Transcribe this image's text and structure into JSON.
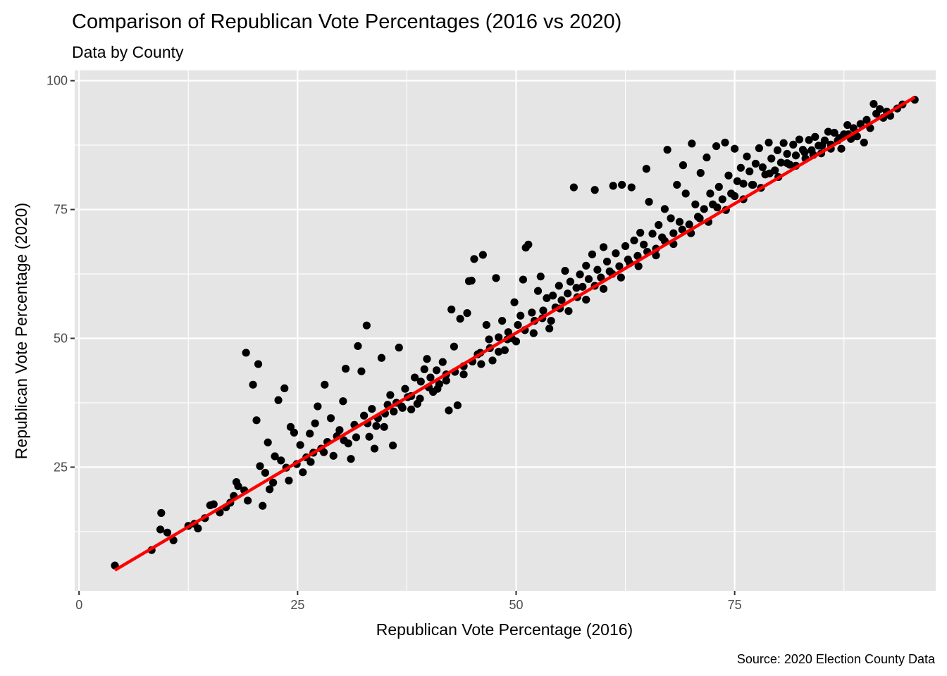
{
  "chart_data": {
    "type": "scatter",
    "title": "Comparison of Republican Vote Percentages (2016 vs 2020)",
    "subtitle": "Data by County",
    "xlabel": "Republican Vote Percentage (2016)",
    "ylabel": "Republican Vote Percentage (2020)",
    "caption": "Source: 2020 Election County Data",
    "xlim": [
      -0.5,
      98
    ],
    "ylim": [
      1,
      102
    ],
    "x_ticks": [
      0,
      25,
      50,
      75
    ],
    "y_ticks": [
      25,
      50,
      75,
      100
    ],
    "x_tick_labels": [
      "0",
      "25",
      "50",
      "75"
    ],
    "y_tick_labels": [
      "25",
      "50",
      "75",
      "100"
    ],
    "grid": true,
    "point_color": "#000000",
    "panel_background": "#e5e5e5",
    "grid_color": "#ffffff",
    "fit_line": {
      "color": "#ff0000",
      "x": [
        4.1,
        95.6
      ],
      "y": [
        5.0,
        96.8
      ]
    },
    "series": [
      {
        "points": [
          [
            4.1,
            5.9
          ],
          [
            8.3,
            8.9
          ],
          [
            9.4,
            16.1
          ],
          [
            9.3,
            12.9
          ],
          [
            10.1,
            12.3
          ],
          [
            10.8,
            10.8
          ],
          [
            12.5,
            13.6
          ],
          [
            13.2,
            14.0
          ],
          [
            13.6,
            13.1
          ],
          [
            14.4,
            15.1
          ],
          [
            15.0,
            17.6
          ],
          [
            15.4,
            17.8
          ],
          [
            16.1,
            16.2
          ],
          [
            16.8,
            17.2
          ],
          [
            17.3,
            18.1
          ],
          [
            17.7,
            19.4
          ],
          [
            18.0,
            22.1
          ],
          [
            18.2,
            21.3
          ],
          [
            18.9,
            20.5
          ],
          [
            19.3,
            18.5
          ],
          [
            19.1,
            47.2
          ],
          [
            19.9,
            41.0
          ],
          [
            20.3,
            34.1
          ],
          [
            20.5,
            45.0
          ],
          [
            20.7,
            25.2
          ],
          [
            21.0,
            17.5
          ],
          [
            21.3,
            23.9
          ],
          [
            21.6,
            29.8
          ],
          [
            21.8,
            20.7
          ],
          [
            22.2,
            22.0
          ],
          [
            22.4,
            27.1
          ],
          [
            22.8,
            38.0
          ],
          [
            23.1,
            26.3
          ],
          [
            23.5,
            40.3
          ],
          [
            23.7,
            24.9
          ],
          [
            24.0,
            22.4
          ],
          [
            24.2,
            32.8
          ],
          [
            24.6,
            31.7
          ],
          [
            24.9,
            25.6
          ],
          [
            25.3,
            29.3
          ],
          [
            25.6,
            24.0
          ],
          [
            26.0,
            26.9
          ],
          [
            26.4,
            31.5
          ],
          [
            26.8,
            27.8
          ],
          [
            27.0,
            33.5
          ],
          [
            27.3,
            36.8
          ],
          [
            27.7,
            28.6
          ],
          [
            28.1,
            41.0
          ],
          [
            28.4,
            29.9
          ],
          [
            28.8,
            34.5
          ],
          [
            29.1,
            27.2
          ],
          [
            29.5,
            31.0
          ],
          [
            29.8,
            32.2
          ],
          [
            30.2,
            37.8
          ],
          [
            30.5,
            44.1
          ],
          [
            30.8,
            29.6
          ],
          [
            31.1,
            26.6
          ],
          [
            31.5,
            33.2
          ],
          [
            31.9,
            48.5
          ],
          [
            32.3,
            43.6
          ],
          [
            32.6,
            35.0
          ],
          [
            32.9,
            52.5
          ],
          [
            33.2,
            30.9
          ],
          [
            33.5,
            36.3
          ],
          [
            33.8,
            28.6
          ],
          [
            34.2,
            34.5
          ],
          [
            34.6,
            46.2
          ],
          [
            34.9,
            32.8
          ],
          [
            35.3,
            37.1
          ],
          [
            35.6,
            39.0
          ],
          [
            35.9,
            29.2
          ],
          [
            36.3,
            37.5
          ],
          [
            36.6,
            48.2
          ],
          [
            36.9,
            36.8
          ],
          [
            37.3,
            40.2
          ],
          [
            37.6,
            38.6
          ],
          [
            38.0,
            36.2
          ],
          [
            38.4,
            42.4
          ],
          [
            38.7,
            37.3
          ],
          [
            39.1,
            41.6
          ],
          [
            39.5,
            44.0
          ],
          [
            39.8,
            46.0
          ],
          [
            40.2,
            42.4
          ],
          [
            40.5,
            39.6
          ],
          [
            40.9,
            43.8
          ],
          [
            41.2,
            41.1
          ],
          [
            41.6,
            45.4
          ],
          [
            42.0,
            43.0
          ],
          [
            42.3,
            36.0
          ],
          [
            42.6,
            55.6
          ],
          [
            42.9,
            48.4
          ],
          [
            43.3,
            37.0
          ],
          [
            43.6,
            53.8
          ],
          [
            44.0,
            44.6
          ],
          [
            44.4,
            54.9
          ],
          [
            44.6,
            61.1
          ],
          [
            44.9,
            61.2
          ],
          [
            45.2,
            65.4
          ],
          [
            45.6,
            46.9
          ],
          [
            45.9,
            47.2
          ],
          [
            46.2,
            66.2
          ],
          [
            46.6,
            52.6
          ],
          [
            46.9,
            49.8
          ],
          [
            47.3,
            45.7
          ],
          [
            47.7,
            61.7
          ],
          [
            48.0,
            50.2
          ],
          [
            48.4,
            53.4
          ],
          [
            48.7,
            47.7
          ],
          [
            49.1,
            51.2
          ],
          [
            49.5,
            50.0
          ],
          [
            49.8,
            57.0
          ],
          [
            50.2,
            52.6
          ],
          [
            50.5,
            54.4
          ],
          [
            50.8,
            61.4
          ],
          [
            51.1,
            67.6
          ],
          [
            51.4,
            68.2
          ],
          [
            51.8,
            55.0
          ],
          [
            52.1,
            53.4
          ],
          [
            52.5,
            59.2
          ],
          [
            52.8,
            62.0
          ],
          [
            53.1,
            55.4
          ],
          [
            53.5,
            57.8
          ],
          [
            53.8,
            51.9
          ],
          [
            54.2,
            58.3
          ],
          [
            54.5,
            56.0
          ],
          [
            54.9,
            60.2
          ],
          [
            55.2,
            57.4
          ],
          [
            55.6,
            63.1
          ],
          [
            55.9,
            58.7
          ],
          [
            56.2,
            61.0
          ],
          [
            56.6,
            79.3
          ],
          [
            56.9,
            59.8
          ],
          [
            57.3,
            62.4
          ],
          [
            57.6,
            60.0
          ],
          [
            58.0,
            64.1
          ],
          [
            58.3,
            61.5
          ],
          [
            58.7,
            66.3
          ],
          [
            59.0,
            78.8
          ],
          [
            59.3,
            63.3
          ],
          [
            59.7,
            61.8
          ],
          [
            60.0,
            67.7
          ],
          [
            60.4,
            64.9
          ],
          [
            60.7,
            63.0
          ],
          [
            61.1,
            79.6
          ],
          [
            61.4,
            66.5
          ],
          [
            61.8,
            64.0
          ],
          [
            62.1,
            79.8
          ],
          [
            62.5,
            67.9
          ],
          [
            62.8,
            65.3
          ],
          [
            63.2,
            79.3
          ],
          [
            63.5,
            69.0
          ],
          [
            63.9,
            66.0
          ],
          [
            64.2,
            70.5
          ],
          [
            64.6,
            68.2
          ],
          [
            64.9,
            82.9
          ],
          [
            65.2,
            76.5
          ],
          [
            65.6,
            70.3
          ],
          [
            66.0,
            67.4
          ],
          [
            66.3,
            72.0
          ],
          [
            66.7,
            69.6
          ],
          [
            67.0,
            75.1
          ],
          [
            67.3,
            86.6
          ],
          [
            67.7,
            73.3
          ],
          [
            68.0,
            70.4
          ],
          [
            68.4,
            79.8
          ],
          [
            68.7,
            72.6
          ],
          [
            69.1,
            83.6
          ],
          [
            69.4,
            78.1
          ],
          [
            69.8,
            72.1
          ],
          [
            70.1,
            87.8
          ],
          [
            70.5,
            76.0
          ],
          [
            70.8,
            73.6
          ],
          [
            71.1,
            82.1
          ],
          [
            71.5,
            75.1
          ],
          [
            71.8,
            85.1
          ],
          [
            72.2,
            78.1
          ],
          [
            72.5,
            76.0
          ],
          [
            72.9,
            87.3
          ],
          [
            73.2,
            79.4
          ],
          [
            73.6,
            77.0
          ],
          [
            73.9,
            88.0
          ],
          [
            74.3,
            81.6
          ],
          [
            74.6,
            78.1
          ],
          [
            75.0,
            86.8
          ],
          [
            75.3,
            80.5
          ],
          [
            75.7,
            83.1
          ],
          [
            76.0,
            80.0
          ],
          [
            76.4,
            85.3
          ],
          [
            76.7,
            82.4
          ],
          [
            77.1,
            79.8
          ],
          [
            77.4,
            83.9
          ],
          [
            77.8,
            86.9
          ],
          [
            78.2,
            83.2
          ],
          [
            78.5,
            81.8
          ],
          [
            78.9,
            88.0
          ],
          [
            79.2,
            84.9
          ],
          [
            79.6,
            82.6
          ],
          [
            79.9,
            86.5
          ],
          [
            80.3,
            84.1
          ],
          [
            80.6,
            87.9
          ],
          [
            81.0,
            85.8
          ],
          [
            81.3,
            83.7
          ],
          [
            81.7,
            87.6
          ],
          [
            82.0,
            85.5
          ],
          [
            82.4,
            88.6
          ],
          [
            82.8,
            86.6
          ],
          [
            83.1,
            84.9
          ],
          [
            83.5,
            88.5
          ],
          [
            83.8,
            86.5
          ],
          [
            84.2,
            89.1
          ],
          [
            84.6,
            87.4
          ],
          [
            84.9,
            85.9
          ],
          [
            85.3,
            88.4
          ],
          [
            85.7,
            90.1
          ],
          [
            86.0,
            87.6
          ],
          [
            86.4,
            89.9
          ],
          [
            86.8,
            88.4
          ],
          [
            87.2,
            86.8
          ],
          [
            87.5,
            89.6
          ],
          [
            87.9,
            91.4
          ],
          [
            88.3,
            88.7
          ],
          [
            88.6,
            90.8
          ],
          [
            89.0,
            89.2
          ],
          [
            89.4,
            91.6
          ],
          [
            89.8,
            88.0
          ],
          [
            90.1,
            92.4
          ],
          [
            90.5,
            90.8
          ],
          [
            90.9,
            95.5
          ],
          [
            91.2,
            93.6
          ],
          [
            91.6,
            94.5
          ],
          [
            92.0,
            92.8
          ],
          [
            92.4,
            94.0
          ],
          [
            92.8,
            93.2
          ],
          [
            93.6,
            94.6
          ],
          [
            94.2,
            95.4
          ],
          [
            95.6,
            96.3
          ],
          [
            26.5,
            26.0
          ],
          [
            28.0,
            27.9
          ],
          [
            30.3,
            30.2
          ],
          [
            31.7,
            30.8
          ],
          [
            33.0,
            33.5
          ],
          [
            34.0,
            33.0
          ],
          [
            35.0,
            35.4
          ],
          [
            36.0,
            35.8
          ],
          [
            37.0,
            36.5
          ],
          [
            38.0,
            38.8
          ],
          [
            39.0,
            38.3
          ],
          [
            40.0,
            40.5
          ],
          [
            41.0,
            40.2
          ],
          [
            42.0,
            41.8
          ],
          [
            43.0,
            43.5
          ],
          [
            44.0,
            43.0
          ],
          [
            45.0,
            45.5
          ],
          [
            46.0,
            45.0
          ],
          [
            47.0,
            48.1
          ],
          [
            48.0,
            47.4
          ],
          [
            49.0,
            49.8
          ],
          [
            50.0,
            49.4
          ],
          [
            51.0,
            51.6
          ],
          [
            52.0,
            51.0
          ],
          [
            53.0,
            53.9
          ],
          [
            54.0,
            53.4
          ],
          [
            55.0,
            55.8
          ],
          [
            56.0,
            55.3
          ],
          [
            57.0,
            58.0
          ],
          [
            58.0,
            57.5
          ],
          [
            59.0,
            60.2
          ],
          [
            60.0,
            59.6
          ],
          [
            61.0,
            62.5
          ],
          [
            62.0,
            61.8
          ],
          [
            63.0,
            64.6
          ],
          [
            64.0,
            64.0
          ],
          [
            65.0,
            66.8
          ],
          [
            66.0,
            66.1
          ],
          [
            67.0,
            68.9
          ],
          [
            68.0,
            68.3
          ],
          [
            69.0,
            71.1
          ],
          [
            70.0,
            70.4
          ],
          [
            71.0,
            73.3
          ],
          [
            72.0,
            72.6
          ],
          [
            73.0,
            75.4
          ],
          [
            74.0,
            74.9
          ],
          [
            75.0,
            77.6
          ],
          [
            76.0,
            77.0
          ],
          [
            77.0,
            79.8
          ],
          [
            78.0,
            79.2
          ],
          [
            79.0,
            82.0
          ],
          [
            80.0,
            81.3
          ],
          [
            81.0,
            84.0
          ],
          [
            82.0,
            83.5
          ],
          [
            83.0,
            86.1
          ],
          [
            84.0,
            85.6
          ],
          [
            85.0,
            87.4
          ],
          [
            86.0,
            86.8
          ],
          [
            87.0,
            88.9
          ],
          [
            88.0,
            89.6
          ]
        ]
      }
    ]
  }
}
